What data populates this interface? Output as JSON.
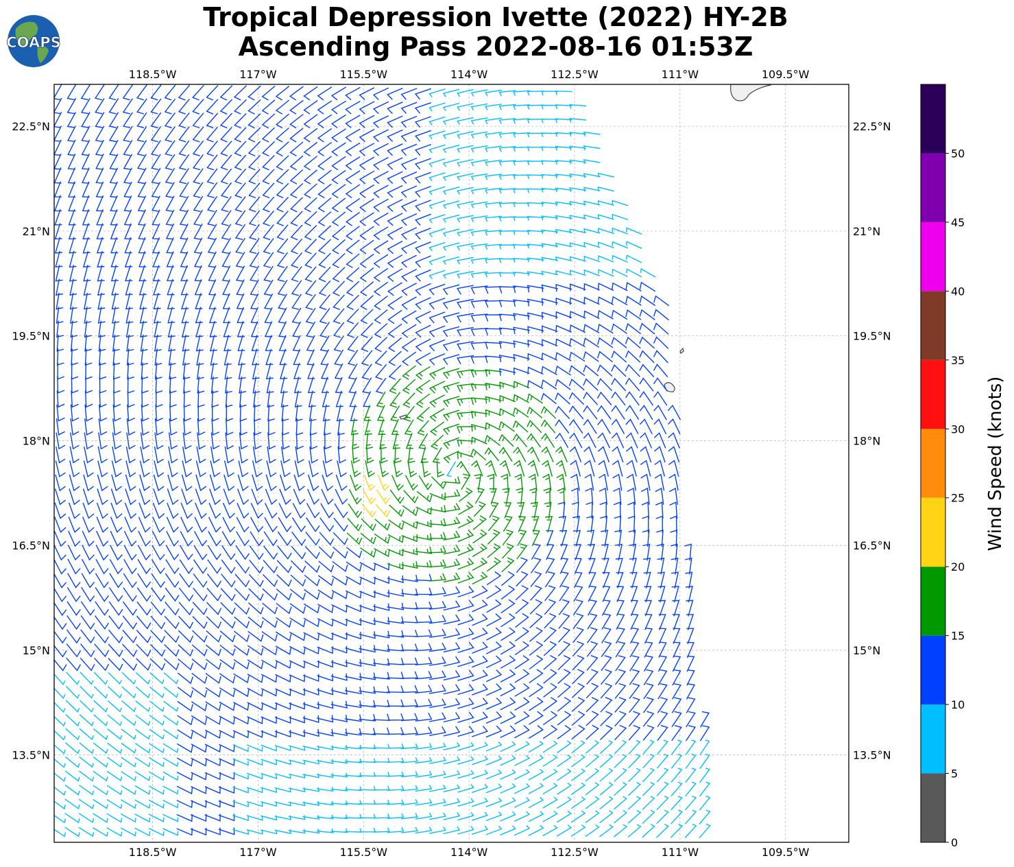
{
  "title": {
    "line1": "Tropical Depression Ivette (2022) HY-2B",
    "line2": "Ascending Pass 2022-08-16 01:53Z"
  },
  "logo": {
    "text": "COAPS"
  },
  "map": {
    "lon_ticks": [
      {
        "value": -118.5,
        "label": "118.5°W"
      },
      {
        "value": -117.0,
        "label": "117°W"
      },
      {
        "value": -115.5,
        "label": "115.5°W"
      },
      {
        "value": -114.0,
        "label": "114°W"
      },
      {
        "value": -112.5,
        "label": "112.5°W"
      },
      {
        "value": -111.0,
        "label": "111°W"
      },
      {
        "value": -109.5,
        "label": "109.5°W"
      }
    ],
    "lat_ticks": [
      {
        "value": 22.5,
        "label": "22.5°N"
      },
      {
        "value": 21.0,
        "label": "21°N"
      },
      {
        "value": 19.5,
        "label": "19.5°N"
      },
      {
        "value": 18.0,
        "label": "18°N"
      },
      {
        "value": 16.5,
        "label": "16.5°N"
      },
      {
        "value": 15.0,
        "label": "15°N"
      },
      {
        "value": 13.5,
        "label": "13.5°N"
      }
    ],
    "extent": {
      "lon_min": -119.9,
      "lon_max": -108.6,
      "lat_min": 12.25,
      "lat_max": 23.1
    }
  },
  "colorbar": {
    "label": "Wind Speed (knots)",
    "bins": [
      {
        "min": 0,
        "max": 5,
        "color": "#595959"
      },
      {
        "min": 5,
        "max": 10,
        "color": "#00bfff"
      },
      {
        "min": 10,
        "max": 15,
        "color": "#0040ff"
      },
      {
        "min": 15,
        "max": 20,
        "color": "#009900"
      },
      {
        "min": 20,
        "max": 25,
        "color": "#ffd414"
      },
      {
        "min": 25,
        "max": 30,
        "color": "#ff8c0a"
      },
      {
        "min": 30,
        "max": 35,
        "color": "#ff1010"
      },
      {
        "min": 35,
        "max": 40,
        "color": "#7f3a28"
      },
      {
        "min": 40,
        "max": 45,
        "color": "#ee00ee"
      },
      {
        "min": 45,
        "max": 50,
        "color": "#8000b0"
      },
      {
        "min": 50,
        "max": 55,
        "color": "#2c0058"
      }
    ],
    "tick_labels": [
      "0",
      "5",
      "10",
      "15",
      "20",
      "25",
      "30",
      "35",
      "40",
      "45",
      "50"
    ]
  },
  "chart_data": {
    "type": "wind barbs",
    "center": {
      "lon": -114.2,
      "lat": 17.55
    },
    "swath_east_edge": [
      [
        23.0,
        -112.5
      ],
      [
        20.0,
        -111.2
      ],
      [
        17.0,
        -110.9
      ],
      [
        13.0,
        -110.55
      ],
      [
        12.25,
        -110.45
      ]
    ],
    "units": "knots"
  }
}
